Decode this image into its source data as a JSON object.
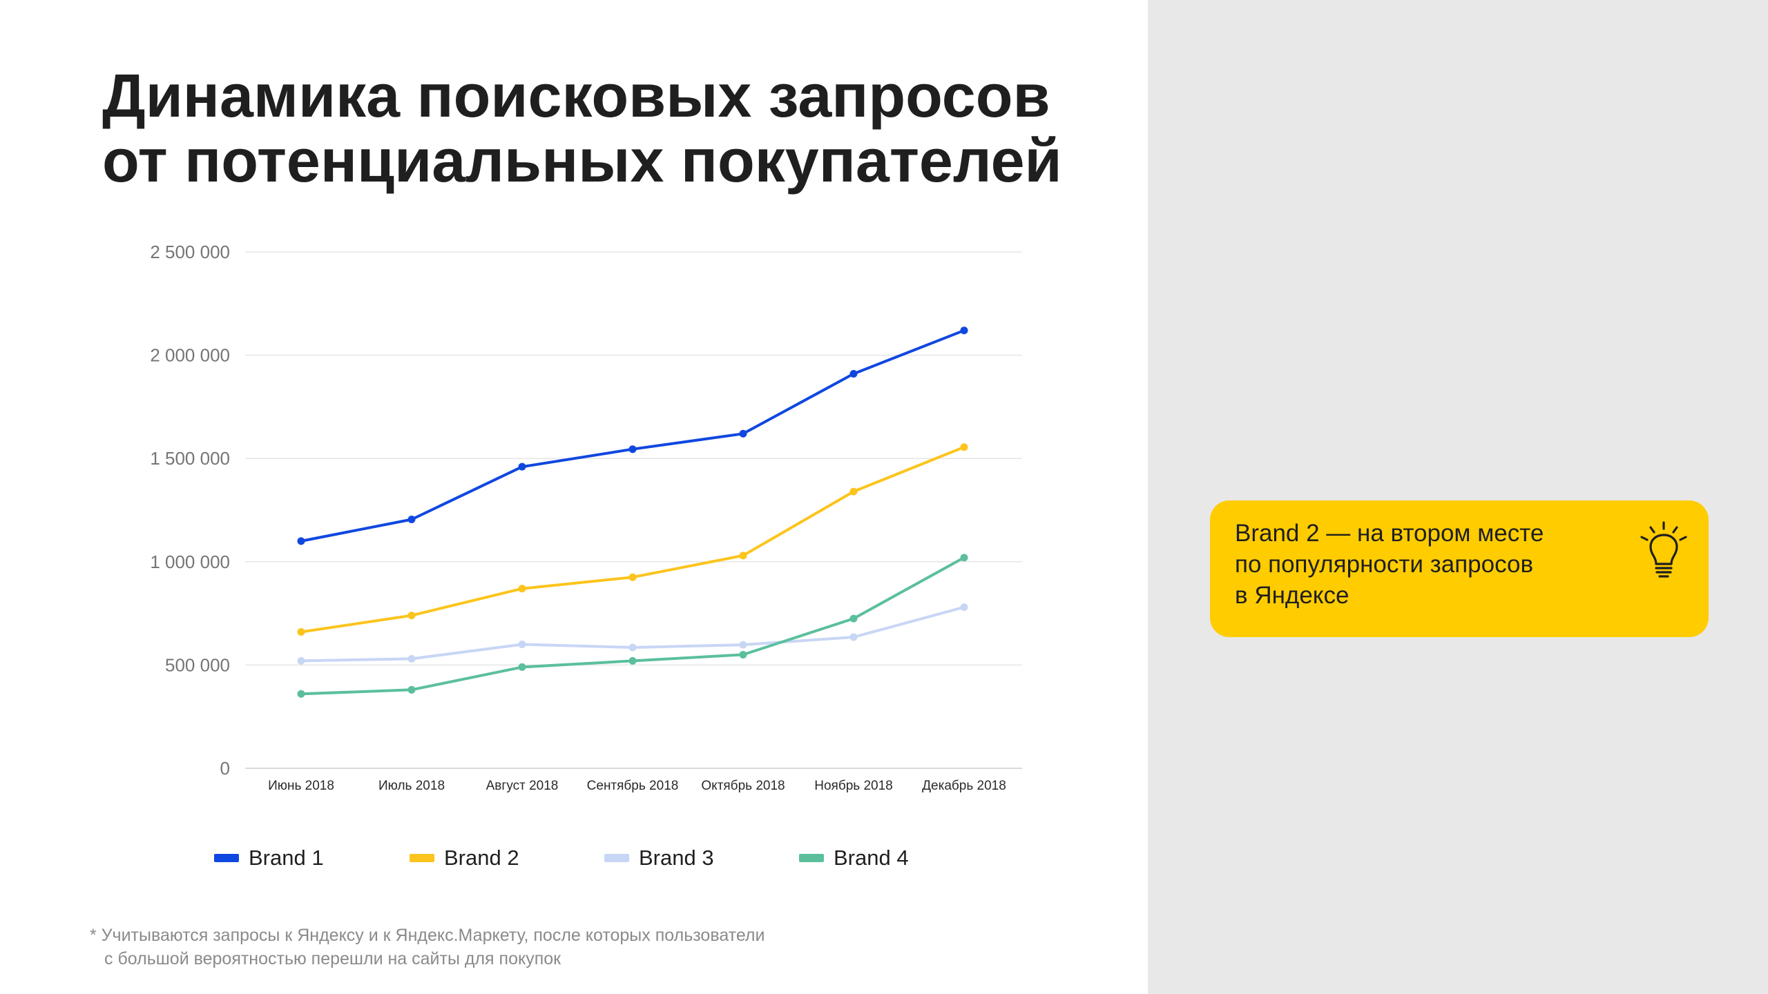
{
  "slide": {
    "title_lines": [
      "Динамика поисковых запросов",
      "от потенциальных покупателей"
    ],
    "footnote_lines": [
      "* Учитываются запросы к Яндексу и к Яндекс.Маркету, после которых пользователи",
      "с большой вероятностью перешли на сайты для покупок"
    ],
    "callout": {
      "lines": [
        "Brand 2 — на втором месте",
        "по популярности запросов",
        "в Яндексе"
      ],
      "icon": "lightbulb-icon"
    }
  },
  "chart_data": {
    "type": "line",
    "title": "",
    "xlabel": "",
    "ylabel": "",
    "categories": [
      "Июнь 2018",
      "Июль 2018",
      "Август 2018",
      "Сентябрь 2018",
      "Октябрь 2018",
      "Ноябрь 2018",
      "Декабрь 2018"
    ],
    "ylim": [
      0,
      2500000
    ],
    "yticks": [
      0,
      500000,
      1000000,
      1500000,
      2000000,
      2500000
    ],
    "ytick_labels": [
      "0",
      "500 000",
      "1 000 000",
      "1 500 000",
      "2 000 000",
      "2 500 000"
    ],
    "grid": true,
    "legend_position": "bottom",
    "series": [
      {
        "name": "Brand 1",
        "color": "#1047e0",
        "values": [
          1100000,
          1205000,
          1460000,
          1545000,
          1620000,
          1910000,
          2120000
        ]
      },
      {
        "name": "Brand 2",
        "color": "#fcc41c",
        "values": [
          660000,
          740000,
          870000,
          925000,
          1030000,
          1340000,
          1555000
        ]
      },
      {
        "name": "Brand 3",
        "color": "#c8d6f5",
        "values": [
          520000,
          530000,
          600000,
          585000,
          598000,
          635000,
          780000
        ]
      },
      {
        "name": "Brand 4",
        "color": "#5bbf9c",
        "values": [
          360000,
          380000,
          490000,
          520000,
          550000,
          725000,
          1020000
        ]
      }
    ]
  }
}
